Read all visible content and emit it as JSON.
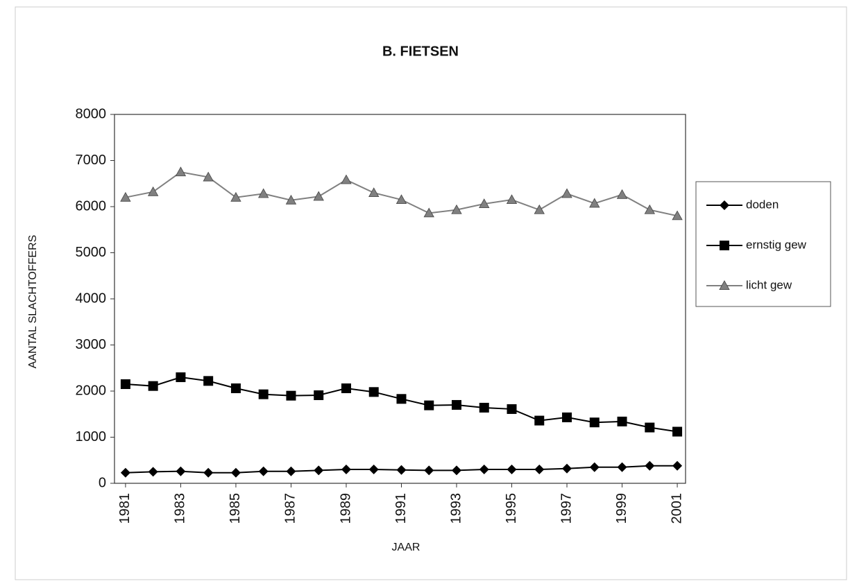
{
  "chart_data": {
    "type": "line",
    "title": "B. FIETSEN",
    "x_label": "JAAR",
    "y_label": "AANTAL SLACHTOFFERS",
    "x": [
      1981,
      1982,
      1983,
      1984,
      1985,
      1986,
      1987,
      1988,
      1989,
      1990,
      1991,
      1992,
      1993,
      1994,
      1995,
      1996,
      1997,
      1998,
      1999,
      2000,
      2001
    ],
    "xlim": [
      1980.6,
      2001.3
    ],
    "xticks": [
      1981,
      1983,
      1985,
      1987,
      1989,
      1991,
      1993,
      1995,
      1997,
      1999,
      2001
    ],
    "ylim": [
      0,
      8000
    ],
    "yticks": [
      0,
      1000,
      2000,
      3000,
      4000,
      5000,
      6000,
      7000,
      8000
    ],
    "legend": "right",
    "series": [
      {
        "name": "doden",
        "color": "#000000",
        "marker": "diamond",
        "values": [
          230,
          250,
          260,
          230,
          230,
          260,
          260,
          280,
          300,
          300,
          290,
          280,
          280,
          300,
          300,
          300,
          320,
          350,
          350,
          380,
          380
        ]
      },
      {
        "name": "ernstig gew",
        "color": "#000000",
        "marker": "square",
        "values": [
          2150,
          2110,
          2300,
          2220,
          2060,
          1930,
          1900,
          1910,
          2060,
          1980,
          1830,
          1690,
          1700,
          1640,
          1610,
          1360,
          1430,
          1320,
          1340,
          1210,
          1120
        ]
      },
      {
        "name": "licht gew",
        "color": "#808080",
        "marker": "triangle",
        "values": [
          6200,
          6320,
          6750,
          6640,
          6200,
          6280,
          6140,
          6220,
          6580,
          6300,
          6150,
          5860,
          5930,
          6060,
          6150,
          5930,
          6280,
          6070,
          6260,
          5930,
          5800
        ]
      }
    ]
  }
}
